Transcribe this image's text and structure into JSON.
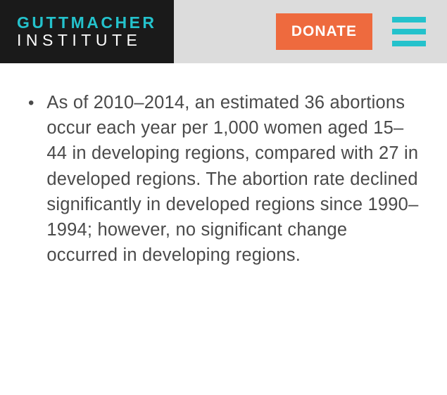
{
  "header": {
    "logo_line1": "GUTTMACHER",
    "logo_line2": "INSTITUTE",
    "donate_label": "DONATE"
  },
  "content": {
    "bullet_text": "As of 2010–2014, an estimated 36 abortions occur each year per 1,000 women aged 15–44 in developing regions, compared with 27 in developed regions. The abortion rate declined significantly in developed regions since 1990–1994; however, no significant change occurred in developing regions."
  },
  "colors": {
    "header_bg": "#dcdcdc",
    "logo_bg": "#1a1a1a",
    "accent_teal": "#24c2cc",
    "donate_bg": "#ee6a3e",
    "text_dark": "#4a4a4a",
    "white": "#ffffff"
  }
}
